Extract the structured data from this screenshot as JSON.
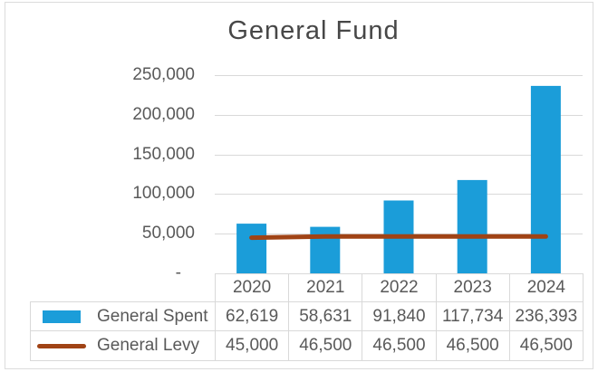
{
  "title": "General Fund",
  "colors": {
    "bar": "#1B9DD9",
    "line": "#A04315",
    "grid": "#D9D9D9",
    "table_border": "#D9D9D9",
    "text": "#595959",
    "title_text": "#474747",
    "frame_border": "#DCDCDC",
    "background": "#FFFFFF"
  },
  "chart_data": {
    "type": "bar",
    "title": "General Fund",
    "categories": [
      "2020",
      "2021",
      "2022",
      "2023",
      "2024"
    ],
    "series": [
      {
        "name": "General Spent",
        "type": "bar",
        "color": "#1B9DD9",
        "values": [
          62619,
          58631,
          91840,
          117734,
          236393
        ],
        "labels": [
          "62,619",
          "58,631",
          "91,840",
          "117,734",
          "236,393"
        ]
      },
      {
        "name": "General Levy",
        "type": "line",
        "color": "#A04315",
        "values": [
          45000,
          46500,
          46500,
          46500,
          46500
        ],
        "labels": [
          "45,000",
          "46,500",
          "46,500",
          "46,500",
          "46,500"
        ]
      }
    ],
    "y_axis": {
      "min": 0,
      "max": 250000,
      "ticks": [
        {
          "value": 250000,
          "label": "250,000"
        },
        {
          "value": 200000,
          "label": "200,000"
        },
        {
          "value": 150000,
          "label": "150,000"
        },
        {
          "value": 100000,
          "label": "100,000"
        },
        {
          "value": 50000,
          "label": "50,000"
        },
        {
          "value": 0,
          "label": "-"
        }
      ]
    },
    "grid": true,
    "legend_position": "data-table-left"
  }
}
